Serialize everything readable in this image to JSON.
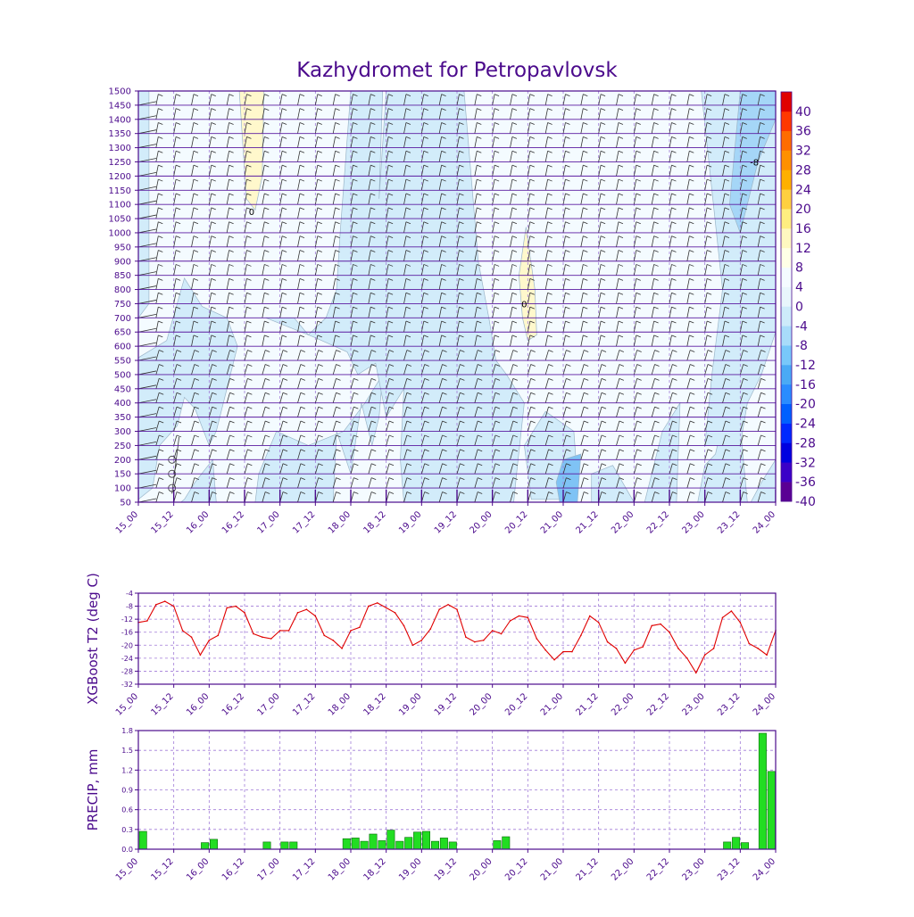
{
  "title": "Kazhydromet for Petropavlovsk",
  "chart_data": [
    {
      "type": "heatmap",
      "ylabel": "",
      "xlabel": "",
      "x_ticks": [
        "15_00",
        "15_12",
        "16_00",
        "16_12",
        "17_00",
        "17_12",
        "18_00",
        "18_12",
        "19_00",
        "19_12",
        "20_00",
        "20_12",
        "21_00",
        "21_12",
        "22_00",
        "22_12",
        "23_00",
        "23_12",
        "24_00"
      ],
      "y_ticks": [
        50,
        100,
        150,
        200,
        250,
        300,
        350,
        400,
        450,
        500,
        550,
        600,
        650,
        700,
        750,
        800,
        850,
        900,
        950,
        1000,
        1050,
        1100,
        1150,
        1200,
        1250,
        1300,
        1350,
        1400,
        1450,
        1500
      ],
      "ylim": [
        50,
        1500
      ],
      "contour_labels": [
        "0",
        "0",
        "-8"
      ],
      "colorbar": {
        "levels": [
          40,
          36,
          32,
          28,
          24,
          20,
          16,
          12,
          8,
          4,
          0,
          -4,
          -8,
          -12,
          -16,
          -20,
          -24,
          -28,
          -32,
          -36,
          -40
        ],
        "colors": [
          "#5a0094",
          "#3a00c8",
          "#0000e0",
          "#0028ff",
          "#0060ff",
          "#2a8cff",
          "#4aaaf5",
          "#78c8fa",
          "#a8dcfa",
          "#cdebfa",
          "#e8f6fc",
          "#f4fbff",
          "#ffffe6",
          "#fff8c0",
          "#ffee80",
          "#ffd040",
          "#ffb000",
          "#ff9000",
          "#ff6c00",
          "#ff3800",
          "#e00000"
        ]
      },
      "wind_barbs": "on",
      "grid": "on"
    },
    {
      "type": "line",
      "ylabel": "XGBoost T2 (deg C)",
      "xlabel": "",
      "x_ticks": [
        "15_00",
        "15_12",
        "16_00",
        "16_12",
        "17_00",
        "17_12",
        "18_00",
        "18_12",
        "19_00",
        "19_12",
        "20_00",
        "20_12",
        "21_00",
        "21_12",
        "22_00",
        "22_12",
        "23_00",
        "23_12",
        "24_00"
      ],
      "y_ticks": [
        -4,
        -8,
        -12,
        -16,
        -20,
        -24,
        -28,
        -32
      ],
      "ylim": [
        -32,
        -4
      ],
      "color": "#e00000",
      "x": [
        0,
        0.25,
        0.5,
        0.75,
        1,
        1.25,
        1.5,
        1.75,
        2,
        2.25,
        2.5,
        2.75,
        3,
        3.25,
        3.5,
        3.75,
        4,
        4.25,
        4.5,
        4.75,
        5,
        5.25,
        5.5,
        5.75,
        6,
        6.25,
        6.5,
        6.75,
        7,
        7.25,
        7.5,
        7.75,
        8,
        8.25,
        8.5,
        8.75,
        9,
        9.25,
        9.5,
        9.75,
        10,
        10.25,
        10.5,
        10.75,
        11,
        11.25,
        11.5,
        11.75,
        12,
        12.25,
        12.5,
        12.75,
        13,
        13.25,
        13.5,
        13.75,
        14,
        14.25,
        14.5,
        14.75,
        15,
        15.25,
        15.5,
        15.75,
        16,
        16.25,
        16.5,
        16.75,
        17,
        17.25,
        17.5,
        17.75,
        18
      ],
      "values": [
        -13,
        -12.5,
        -7.5,
        -6.5,
        -8,
        -15.5,
        -17.5,
        -23,
        -18.5,
        -17,
        -8.5,
        -8,
        -10,
        -16.5,
        -17.5,
        -18,
        -15.5,
        -15.5,
        -10,
        -9,
        -11,
        -17,
        -18.5,
        -21,
        -15.5,
        -14.5,
        -8,
        -7,
        -8.5,
        -10,
        -14,
        -20,
        -18.5,
        -15,
        -9,
        -7.5,
        -9,
        -17.5,
        -19,
        -18.5,
        -15.5,
        -16.5,
        -12.5,
        -11,
        -11.5,
        -18,
        -21.5,
        -24.5,
        -22,
        -22,
        -17,
        -11,
        -13,
        -19,
        -21,
        -25.5,
        -21.5,
        -20.5,
        -14,
        -13.5,
        -16,
        -21,
        -24,
        -28.5,
        -23,
        -21,
        -11.5,
        -9.5,
        -13,
        -19.5,
        -21,
        -23,
        -15.5
      ],
      "grid": "on"
    },
    {
      "type": "bar",
      "ylabel": "PRECIP, mm",
      "xlabel": "",
      "x_ticks": [
        "15_00",
        "15_12",
        "16_00",
        "16_12",
        "17_00",
        "17_12",
        "18_00",
        "18_12",
        "19_00",
        "19_12",
        "20_00",
        "20_12",
        "21_00",
        "21_12",
        "22_00",
        "22_12",
        "23_00",
        "23_12",
        "24_00"
      ],
      "y_ticks": [
        "1.8",
        "1.5",
        "1.2",
        "0.9",
        "0.6",
        "0.3",
        "0.0"
      ],
      "ylim": [
        0,
        1.8
      ],
      "color": "#22dd22",
      "x": [
        0,
        1.75,
        2,
        3.5,
        4,
        4.25,
        5.75,
        6,
        6.25,
        6.5,
        6.75,
        7,
        7.25,
        7.5,
        7.75,
        8,
        8.25,
        8.5,
        8.75,
        10,
        10.25,
        16.5,
        16.75,
        17,
        17.5,
        17.75
      ],
      "values": [
        0.27,
        0.1,
        0.15,
        0.11,
        0.11,
        0.11,
        0.16,
        0.17,
        0.12,
        0.23,
        0.13,
        0.29,
        0.12,
        0.18,
        0.26,
        0.27,
        0.12,
        0.17,
        0.11,
        0.13,
        0.19,
        0.11,
        0.18,
        0.1,
        1.76,
        1.18
      ],
      "grid": "on"
    }
  ]
}
